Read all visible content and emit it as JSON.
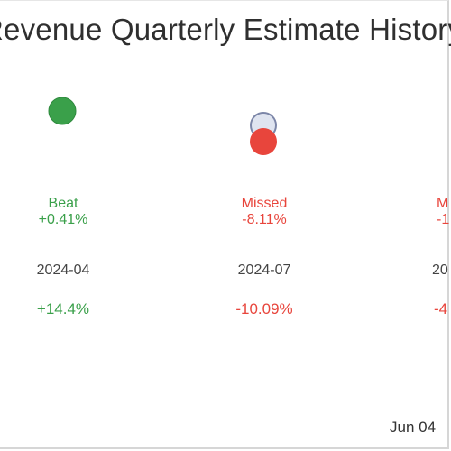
{
  "chart_data": {
    "type": "scatter",
    "title": "Revenue Quarterly Estimate History",
    "columns": [
      {
        "date": "2024-04",
        "status": "Beat",
        "surprise": "+0.41%",
        "yoy": "+14.4%",
        "surprise_value": 0.41,
        "yoy_value": 14.4,
        "tone": "green",
        "show_estimate_marker": false
      },
      {
        "date": "2024-07",
        "status": "Missed",
        "surprise": "-8.11%",
        "yoy": "-10.09%",
        "surprise_value": -8.11,
        "yoy_value": -10.09,
        "tone": "red",
        "show_estimate_marker": true
      },
      {
        "date": "20",
        "status": "M",
        "surprise": "-1",
        "yoy": "-4",
        "tone": "red",
        "partial": true
      }
    ]
  },
  "footer": {
    "date": "Jun 04"
  },
  "colors": {
    "beat": "#3aa04a",
    "missed": "#e8453c",
    "estimate_fill": "#dfe4f0",
    "estimate_stroke": "#7c86a8"
  }
}
